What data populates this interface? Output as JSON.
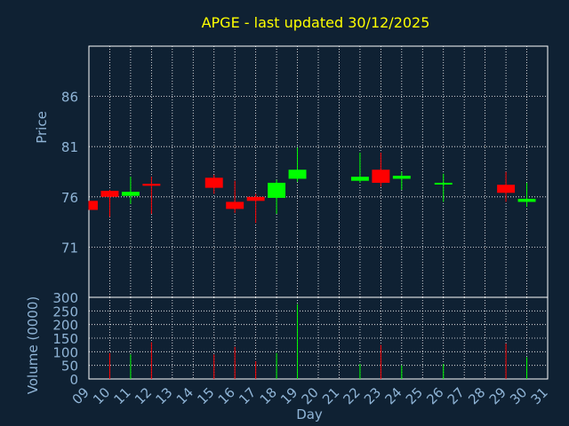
{
  "colors": {
    "background": "#0f2133",
    "title": "#ffff00",
    "axis_text": "#8fb4d6",
    "label_text": "#8fb4d6",
    "grid": "#ffffff",
    "up": "#00ff00",
    "down": "#ff0000"
  },
  "chart_data": [
    {
      "type": "candlestick",
      "title": "APGE - last updated 30/12/2025",
      "ylabel": "Price",
      "ylim": [
        66,
        91
      ],
      "yticks": [
        71,
        76,
        81,
        86
      ],
      "grid": true,
      "x": [
        "09",
        "10",
        "11",
        "12",
        "13",
        "14",
        "15",
        "16",
        "17",
        "18",
        "19",
        "20",
        "21",
        "22",
        "23",
        "24",
        "25",
        "26",
        "27",
        "28",
        "29",
        "30",
        "31"
      ],
      "candles": [
        {
          "day": "09",
          "open": 75.6,
          "high": 75.6,
          "low": 74.7,
          "close": 74.7
        },
        {
          "day": "10",
          "open": 76.6,
          "high": 76.7,
          "low": 74.0,
          "close": 76.0
        },
        {
          "day": "11",
          "open": 76.1,
          "high": 78.0,
          "low": 75.3,
          "close": 76.5
        },
        {
          "day": "12",
          "open": 77.3,
          "high": 78.0,
          "low": 74.3,
          "close": 77.1
        },
        {
          "day": "15",
          "open": 77.9,
          "high": 78.2,
          "low": 76.3,
          "close": 76.9
        },
        {
          "day": "16",
          "open": 75.5,
          "high": 77.6,
          "low": 74.4,
          "close": 74.8
        },
        {
          "day": "17",
          "open": 76.0,
          "high": 76.3,
          "low": 73.4,
          "close": 75.6
        },
        {
          "day": "18",
          "open": 75.9,
          "high": 77.7,
          "low": 74.3,
          "close": 77.4
        },
        {
          "day": "19",
          "open": 77.8,
          "high": 80.9,
          "low": 77.5,
          "close": 78.7
        },
        {
          "day": "22",
          "open": 77.6,
          "high": 80.4,
          "low": 77.4,
          "close": 78.0
        },
        {
          "day": "23",
          "open": 78.7,
          "high": 80.4,
          "low": 77.0,
          "close": 77.4
        },
        {
          "day": "24",
          "open": 77.8,
          "high": 78.5,
          "low": 76.7,
          "close": 78.1
        },
        {
          "day": "26",
          "open": 77.3,
          "high": 78.3,
          "low": 75.5,
          "close": 77.4
        },
        {
          "day": "29",
          "open": 77.2,
          "high": 78.5,
          "low": 75.5,
          "close": 76.4
        },
        {
          "day": "30",
          "open": 75.5,
          "high": 77.4,
          "low": 75.0,
          "close": 75.8
        }
      ]
    },
    {
      "type": "bar",
      "ylabel": "Volume (0000)",
      "xlabel": "Day",
      "ylim": [
        0,
        300
      ],
      "yticks": [
        0,
        50,
        100,
        150,
        200,
        250,
        300
      ],
      "grid": true,
      "categories": [
        "09",
        "10",
        "11",
        "12",
        "13",
        "14",
        "15",
        "16",
        "17",
        "18",
        "19",
        "20",
        "21",
        "22",
        "23",
        "24",
        "25",
        "26",
        "27",
        "28",
        "29",
        "30",
        "31"
      ],
      "values": [
        0,
        95,
        90,
        135,
        0,
        0,
        90,
        118,
        65,
        95,
        275,
        0,
        0,
        55,
        125,
        50,
        0,
        55,
        0,
        0,
        130,
        80,
        0
      ],
      "colors": [
        "",
        "down",
        "up",
        "down",
        "",
        "",
        "down",
        "down",
        "down",
        "up",
        "up",
        "",
        "",
        "up",
        "down",
        "up",
        "",
        "up",
        "",
        "",
        "down",
        "up",
        ""
      ]
    }
  ]
}
